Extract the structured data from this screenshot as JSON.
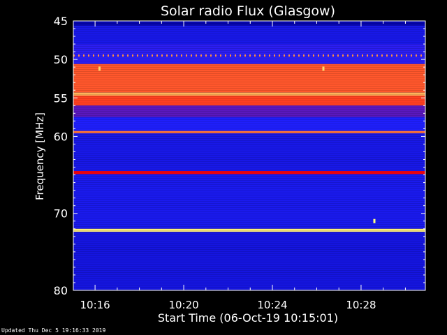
{
  "chart_data": {
    "type": "heatmap",
    "title": "Solar radio Flux (Glasgow)",
    "xlabel": "Start Time (06-Oct-19 10:15:01)",
    "ylabel": "Frequency [MHz]",
    "xlim_minutes_after_10_00": [
      15.02,
      30.9
    ],
    "ylim_mhz": [
      45,
      80
    ],
    "x_ticks": [
      "10:16",
      "10:20",
      "10:24",
      "10:28"
    ],
    "x_tick_minutes": [
      16,
      20,
      24,
      28
    ],
    "y_ticks": [
      "45",
      "50",
      "55",
      "60",
      "70",
      "80"
    ],
    "y_tick_values": [
      45,
      50,
      55,
      60,
      70,
      80
    ],
    "grid": false,
    "colormap": [
      "#0000a0",
      "#2020ff",
      "#ff0000",
      "#ffff80"
    ],
    "bands": [
      {
        "f_start": 45.0,
        "f_end": 45.6,
        "level": 0.05
      },
      {
        "f_start": 45.6,
        "f_end": 48.0,
        "level": 0.25
      },
      {
        "f_start": 48.0,
        "f_end": 50.6,
        "level": 0.35
      },
      {
        "f_start": 50.6,
        "f_end": 54.3,
        "level": 0.78
      },
      {
        "f_start": 54.3,
        "f_end": 54.7,
        "level": 0.9
      },
      {
        "f_start": 54.7,
        "f_end": 56.0,
        "level": 0.75
      },
      {
        "f_start": 56.0,
        "f_end": 57.5,
        "level": 0.42
      },
      {
        "f_start": 57.5,
        "f_end": 59.3,
        "level": 0.32
      },
      {
        "f_start": 59.3,
        "f_end": 59.6,
        "level": 0.82
      },
      {
        "f_start": 59.6,
        "f_end": 64.5,
        "level": 0.25
      },
      {
        "f_start": 64.5,
        "f_end": 64.9,
        "level": 0.65
      },
      {
        "f_start": 64.9,
        "f_end": 72.0,
        "level": 0.27
      },
      {
        "f_start": 72.0,
        "f_end": 72.4,
        "level": 0.98
      },
      {
        "f_start": 72.4,
        "f_end": 80.0,
        "level": 0.22
      }
    ],
    "dashed_line": {
      "f": 49.5,
      "level": 0.85
    },
    "spots": [
      {
        "t": 16.2,
        "f": 51.2,
        "level": 0.95
      },
      {
        "t": 26.3,
        "f": 51.2,
        "level": 0.95
      },
      {
        "t": 28.6,
        "f": 71.0,
        "level": 1.0
      }
    ]
  },
  "footer": "Updated Thu Dec  5 19:16:33 2019"
}
